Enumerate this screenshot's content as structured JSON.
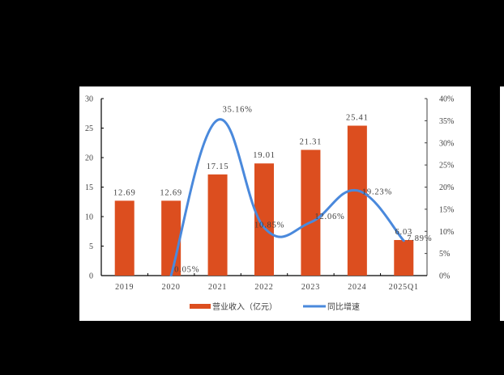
{
  "chart_data": {
    "type": "bar+line",
    "title": "",
    "categories": [
      "2019",
      "2020",
      "2021",
      "2022",
      "2023",
      "2024",
      "2025Q1"
    ],
    "series": [
      {
        "name": "营业收入（亿元）",
        "type": "bar",
        "axis": "left",
        "color": "#DC4E1F",
        "values": [
          12.69,
          12.69,
          17.15,
          19.01,
          21.31,
          25.41,
          6.03
        ],
        "labels": [
          "12.69",
          "12.69",
          "17.15",
          "19.01",
          "21.31",
          "25.41",
          "6.03"
        ]
      },
      {
        "name": "同比增速",
        "type": "line",
        "smooth": true,
        "axis": "right",
        "color": "#4A89DC",
        "values": [
          null,
          0.05,
          35.16,
          10.85,
          12.06,
          19.23,
          7.89
        ],
        "labels": [
          null,
          "0.05%",
          "35.16%",
          "10.85%",
          "12.06%",
          "19.23%",
          "7.89%"
        ]
      }
    ],
    "y_left": {
      "ylim": [
        0,
        30
      ],
      "ticks": [
        "0",
        "5",
        "10",
        "15",
        "20",
        "25",
        "30"
      ]
    },
    "y_right": {
      "ylim": [
        0,
        40
      ],
      "ticks": [
        "0%",
        "5%",
        "10%",
        "15%",
        "20%",
        "25%",
        "30%",
        "35%",
        "40%"
      ]
    },
    "xlabel": "",
    "ylabel": "",
    "grid": false,
    "legend_position": "bottom"
  },
  "legend": {
    "bar_label": "营业收入（亿元）",
    "line_label": "同比增速"
  }
}
